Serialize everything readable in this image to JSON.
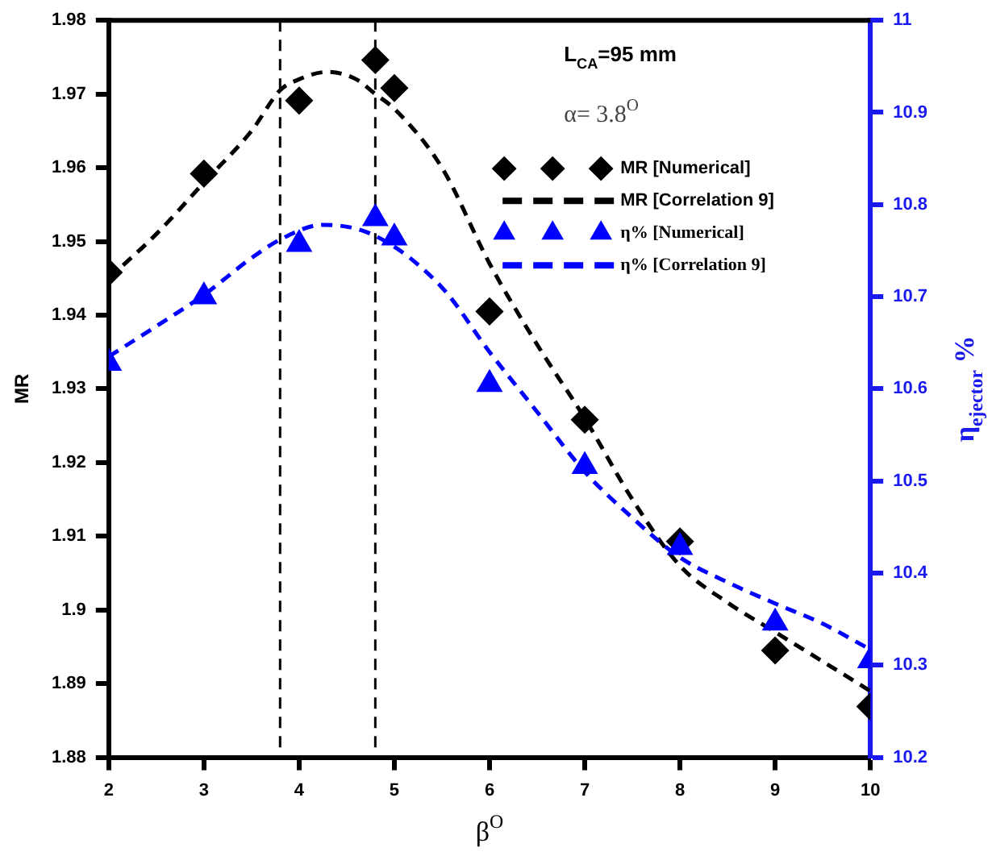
{
  "chart_data": {
    "type": "scatter",
    "xlabel": "β$^{O}$",
    "ylabel": "MR",
    "y2label": "η$_{ejector}$ %",
    "annotations": [
      "L$_{CA}$=95 mm",
      "α= 3.8$^{O}$"
    ],
    "xlim": [
      2,
      10
    ],
    "xticks": [
      2,
      3,
      4,
      5,
      6,
      7,
      8,
      9,
      10
    ],
    "ylim": [
      1.88,
      1.98
    ],
    "yticks": [
      1.88,
      1.89,
      1.9,
      1.91,
      1.92,
      1.93,
      1.94,
      1.95,
      1.96,
      1.97,
      1.98
    ],
    "y2lim": [
      10.2,
      11
    ],
    "y2ticks": [
      10.2,
      10.3,
      10.4,
      10.5,
      10.6,
      10.7,
      10.8,
      10.9,
      11
    ],
    "grid": false,
    "legend": "top right",
    "ref_lines": [
      {
        "axis": "x",
        "value": 3.8,
        "color": "#000000",
        "line_style": "dashed"
      },
      {
        "axis": "x",
        "value": 4.8,
        "color": "#000000",
        "line_style": "dashed"
      }
    ],
    "series": [
      {
        "name": "MR [Numerical]",
        "marker": "diamond",
        "color": "#000000",
        "x": [
          2,
          3,
          4,
          4.8,
          5,
          6,
          7,
          8,
          9,
          10
        ],
        "values": [
          1.9458,
          1.9592,
          1.9691,
          1.9746,
          1.9708,
          1.9405,
          1.9258,
          1.9093,
          1.8945,
          1.8869
        ]
      },
      {
        "name": "MR [Correlation 9]",
        "type": "line",
        "marker": "none",
        "line_style": "dashed",
        "color": "#000000",
        "x": [
          2,
          2.5,
          3,
          3.5,
          3.8,
          4,
          4.3,
          4.6,
          4.8,
          5,
          5.5,
          6,
          6.5,
          7,
          7.5,
          8,
          8.5,
          9,
          9.5,
          10
        ],
        "values": [
          1.945,
          1.951,
          1.958,
          1.965,
          1.9705,
          1.972,
          1.973,
          1.972,
          1.97,
          1.968,
          1.96,
          1.947,
          1.936,
          1.926,
          1.915,
          1.906,
          1.901,
          1.897,
          1.893,
          1.889
        ]
      },
      {
        "name": "η% [Numerical]",
        "marker": "triangle",
        "color": "#0000ff",
        "axis": "y2",
        "x": [
          2,
          3,
          4,
          4.8,
          5,
          6,
          7,
          8,
          9,
          10
        ],
        "values": [
          10.628,
          10.7,
          10.757,
          10.785,
          10.764,
          10.605,
          10.516,
          10.428,
          10.346,
          10.305
        ]
      },
      {
        "name": "η% [Correlation 9]",
        "type": "line",
        "marker": "none",
        "line_style": "dashed",
        "color": "#0000ff",
        "axis": "y2",
        "x": [
          2,
          2.5,
          3,
          3.5,
          3.8,
          4.25,
          4.8,
          5.5,
          6,
          6.5,
          7,
          7.5,
          8,
          8.5,
          9,
          9.5,
          10
        ],
        "values": [
          10.635,
          10.668,
          10.702,
          10.742,
          10.762,
          10.778,
          10.766,
          10.71,
          10.64,
          10.575,
          10.51,
          10.46,
          10.417,
          10.39,
          10.367,
          10.345,
          10.317
        ]
      }
    ]
  }
}
